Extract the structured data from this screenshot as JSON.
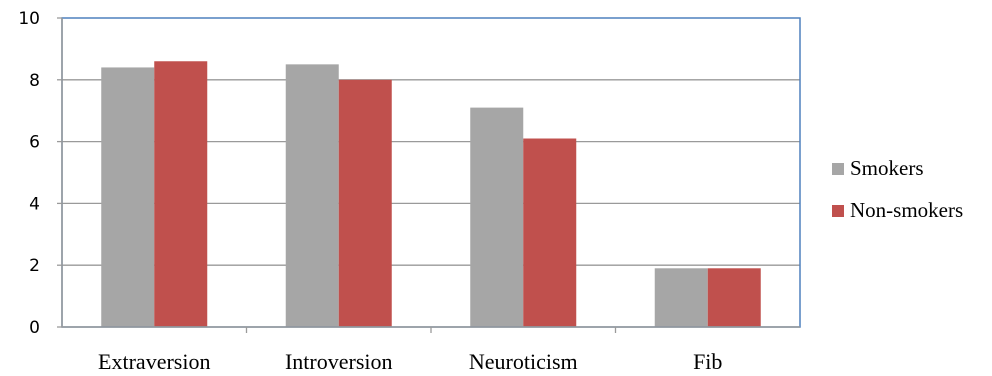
{
  "chart_data": {
    "type": "bar",
    "categories": [
      "Extraversion",
      "Introversion",
      "Neuroticism",
      "Fib"
    ],
    "series": [
      {
        "name": "Smokers",
        "values": [
          8.4,
          8.5,
          7.1,
          1.9
        ],
        "color": "#a6a6a6"
      },
      {
        "name": "Non-smokers",
        "values": [
          8.6,
          8.0,
          6.1,
          1.9
        ],
        "color": "#c0504d"
      }
    ],
    "ylim": [
      0,
      10
    ],
    "yticks": [
      0,
      2,
      4,
      6,
      8,
      10
    ],
    "grid": true,
    "legend_position": "right",
    "plot_border_color": "#4f81bd",
    "grid_color": "#9a9a9a"
  }
}
